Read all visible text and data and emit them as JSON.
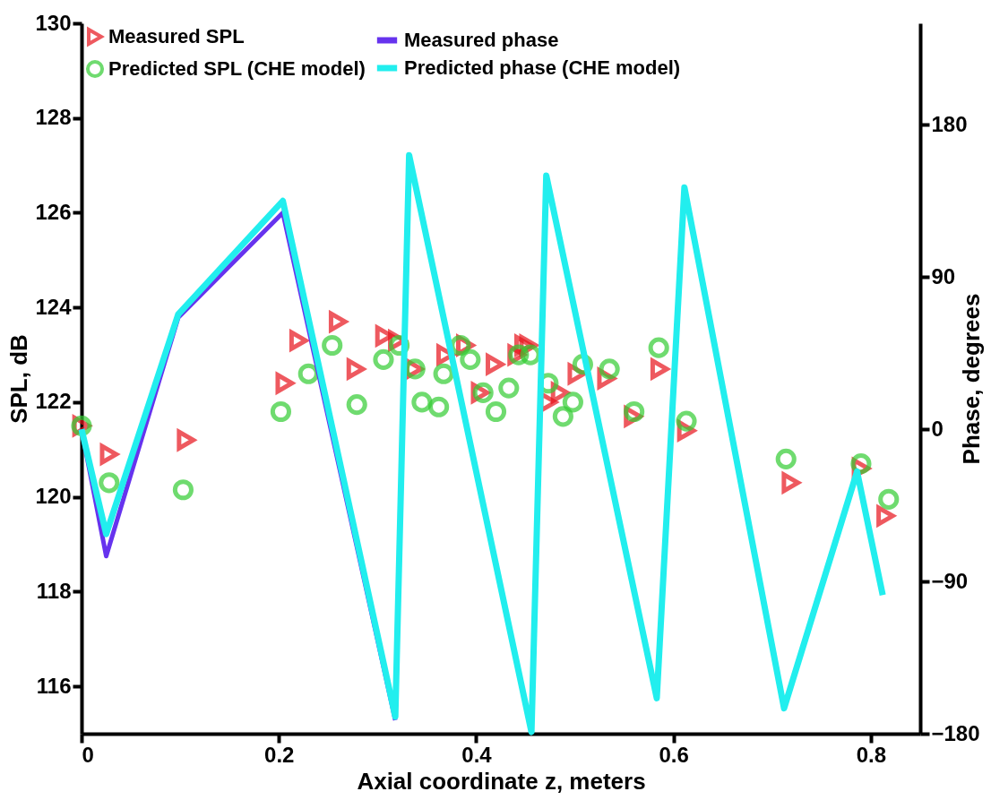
{
  "chart_data": {
    "type": "scatter",
    "xlabel": "Axial coordinate z, meters",
    "ylabel": "SPL, dB",
    "y2label": "Phase, degrees",
    "xlim": [
      0,
      0.85
    ],
    "xticks": [
      0,
      0.2,
      0.4,
      0.6,
      0.8
    ],
    "ylim": [
      115,
      130
    ],
    "yticks": [
      116,
      118,
      120,
      122,
      124,
      126,
      128,
      130
    ],
    "y2lim": [
      -180,
      240
    ],
    "y2ticks": [
      -180,
      -90,
      0,
      90,
      180
    ],
    "grid": false,
    "legend": "top left",
    "series": [
      {
        "name": "Measured SPL",
        "marker": "triangle",
        "color": "#e8141c",
        "x": [
          0,
          0.028,
          0.106,
          0.206,
          0.22,
          0.26,
          0.278,
          0.307,
          0.32,
          0.337,
          0.369,
          0.389,
          0.404,
          0.419,
          0.441,
          0.448,
          0.453,
          0.473,
          0.485,
          0.502,
          0.532,
          0.559,
          0.586,
          0.613,
          0.719,
          0.79,
          0.815
        ],
        "values": [
          121.5,
          120.9,
          121.2,
          122.4,
          123.3,
          123.7,
          122.7,
          123.4,
          123.3,
          122.7,
          123.0,
          123.2,
          122.2,
          122.8,
          123.0,
          123.2,
          123.2,
          122.0,
          122.2,
          122.6,
          122.5,
          121.7,
          122.7,
          121.4,
          120.3,
          120.6,
          119.6
        ]
      },
      {
        "name": "Predicted SPL (CHE model)",
        "marker": "circle",
        "color": "#33cc33",
        "x": [
          0,
          0.028,
          0.103,
          0.202,
          0.23,
          0.254,
          0.279,
          0.306,
          0.322,
          0.338,
          0.345,
          0.362,
          0.367,
          0.384,
          0.394,
          0.407,
          0.42,
          0.433,
          0.443,
          0.455,
          0.473,
          0.488,
          0.498,
          0.508,
          0.535,
          0.56,
          0.585,
          0.613,
          0.714,
          0.79,
          0.818
        ],
        "values": [
          121.5,
          120.3,
          120.15,
          121.8,
          122.6,
          123.2,
          121.95,
          122.9,
          123.2,
          122.7,
          122.0,
          121.9,
          122.6,
          123.2,
          122.9,
          122.2,
          121.8,
          122.3,
          123.0,
          123.0,
          122.4,
          121.7,
          122.0,
          122.8,
          122.7,
          121.8,
          123.15,
          121.6,
          120.8,
          120.7,
          119.95
        ]
      },
      {
        "name": "Measured phase",
        "type": "line",
        "axis": "y2",
        "color": "#6633ee",
        "x": [
          0,
          0.025,
          0.098,
          0.204,
          0.318
        ],
        "values": [
          0,
          -75,
          66,
          128,
          -172
        ]
      },
      {
        "name": "Predicted phase (CHE model)",
        "type": "line",
        "axis": "y2",
        "color": "#22eeee",
        "x": [
          0,
          0.025,
          0.098,
          0.204,
          0.318,
          0.332,
          0.456,
          0.471,
          0.583,
          0.611,
          0.712,
          0.786,
          0.812
        ],
        "values": [
          0,
          -62,
          68,
          135,
          -170,
          162,
          -179,
          150,
          -159,
          143,
          -165,
          -25,
          -98
        ]
      }
    ]
  }
}
